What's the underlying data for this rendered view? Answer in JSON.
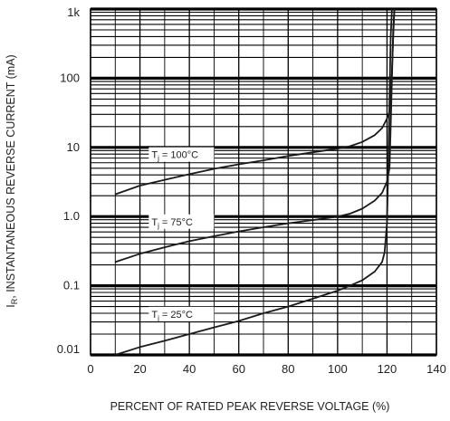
{
  "chart_data": {
    "type": "line",
    "title": "",
    "xlabel": "PERCENT OF RATED PEAK REVERSE VOLTAGE (%)",
    "ylabel": {
      "symbol": "I",
      "subscript": "R",
      "text": ", INSTANTANEOUS REVERSE CURRENT (mA)"
    },
    "xlim": [
      0,
      140
    ],
    "ylim": [
      0.01,
      1000
    ],
    "yscale": "log",
    "x_ticks": [
      0,
      20,
      40,
      60,
      80,
      100,
      120,
      140
    ],
    "x_tick_labels": [
      "0",
      "20",
      "40",
      "60",
      "80",
      "100",
      "120",
      "140"
    ],
    "y_ticks": [
      0.01,
      0.1,
      1,
      10,
      100,
      1000
    ],
    "y_tick_labels": [
      "0.01",
      "0.1",
      "1.0",
      "10",
      "100",
      "1k"
    ],
    "grid": true,
    "series": [
      {
        "label": {
          "prefix": "T",
          "sub": "j",
          "suffix": " = 100°C"
        },
        "points": [
          [
            10,
            2.1
          ],
          [
            20,
            2.8
          ],
          [
            30,
            3.4
          ],
          [
            40,
            4.1
          ],
          [
            50,
            4.9
          ],
          [
            60,
            5.7
          ],
          [
            70,
            6.5
          ],
          [
            80,
            7.5
          ],
          [
            90,
            8.5
          ],
          [
            100,
            9.6
          ],
          [
            105,
            10.4
          ],
          [
            110,
            12
          ],
          [
            115,
            15
          ],
          [
            118,
            19
          ],
          [
            120,
            26
          ],
          [
            121,
            33
          ],
          [
            121.5,
            60
          ],
          [
            122,
            130
          ],
          [
            122.5,
            400
          ],
          [
            123,
            1000
          ]
        ]
      },
      {
        "label": {
          "prefix": "T",
          "sub": "j",
          "suffix": " = 75°C"
        },
        "points": [
          [
            10,
            0.22
          ],
          [
            20,
            0.29
          ],
          [
            30,
            0.36
          ],
          [
            40,
            0.44
          ],
          [
            50,
            0.52
          ],
          [
            60,
            0.61
          ],
          [
            70,
            0.7
          ],
          [
            80,
            0.8
          ],
          [
            90,
            0.89
          ],
          [
            100,
            1.0
          ],
          [
            105,
            1.1
          ],
          [
            110,
            1.3
          ],
          [
            115,
            1.7
          ],
          [
            118,
            2.2
          ],
          [
            120,
            3.2
          ],
          [
            121,
            5
          ],
          [
            121.5,
            20
          ],
          [
            122,
            100
          ],
          [
            122.5,
            500
          ],
          [
            123,
            1000
          ]
        ]
      },
      {
        "label": {
          "prefix": "T",
          "sub": "j",
          "suffix": " = 25°C"
        },
        "points": [
          [
            10,
            0.01
          ],
          [
            20,
            0.013
          ],
          [
            30,
            0.016
          ],
          [
            40,
            0.02
          ],
          [
            50,
            0.025
          ],
          [
            60,
            0.031
          ],
          [
            70,
            0.04
          ],
          [
            80,
            0.05
          ],
          [
            90,
            0.065
          ],
          [
            100,
            0.085
          ],
          [
            105,
            0.1
          ],
          [
            110,
            0.12
          ],
          [
            115,
            0.16
          ],
          [
            118,
            0.22
          ],
          [
            119,
            0.3
          ],
          [
            120,
            0.8
          ],
          [
            120.5,
            5
          ],
          [
            121,
            50
          ],
          [
            121.5,
            400
          ],
          [
            122,
            1000
          ]
        ]
      }
    ]
  }
}
